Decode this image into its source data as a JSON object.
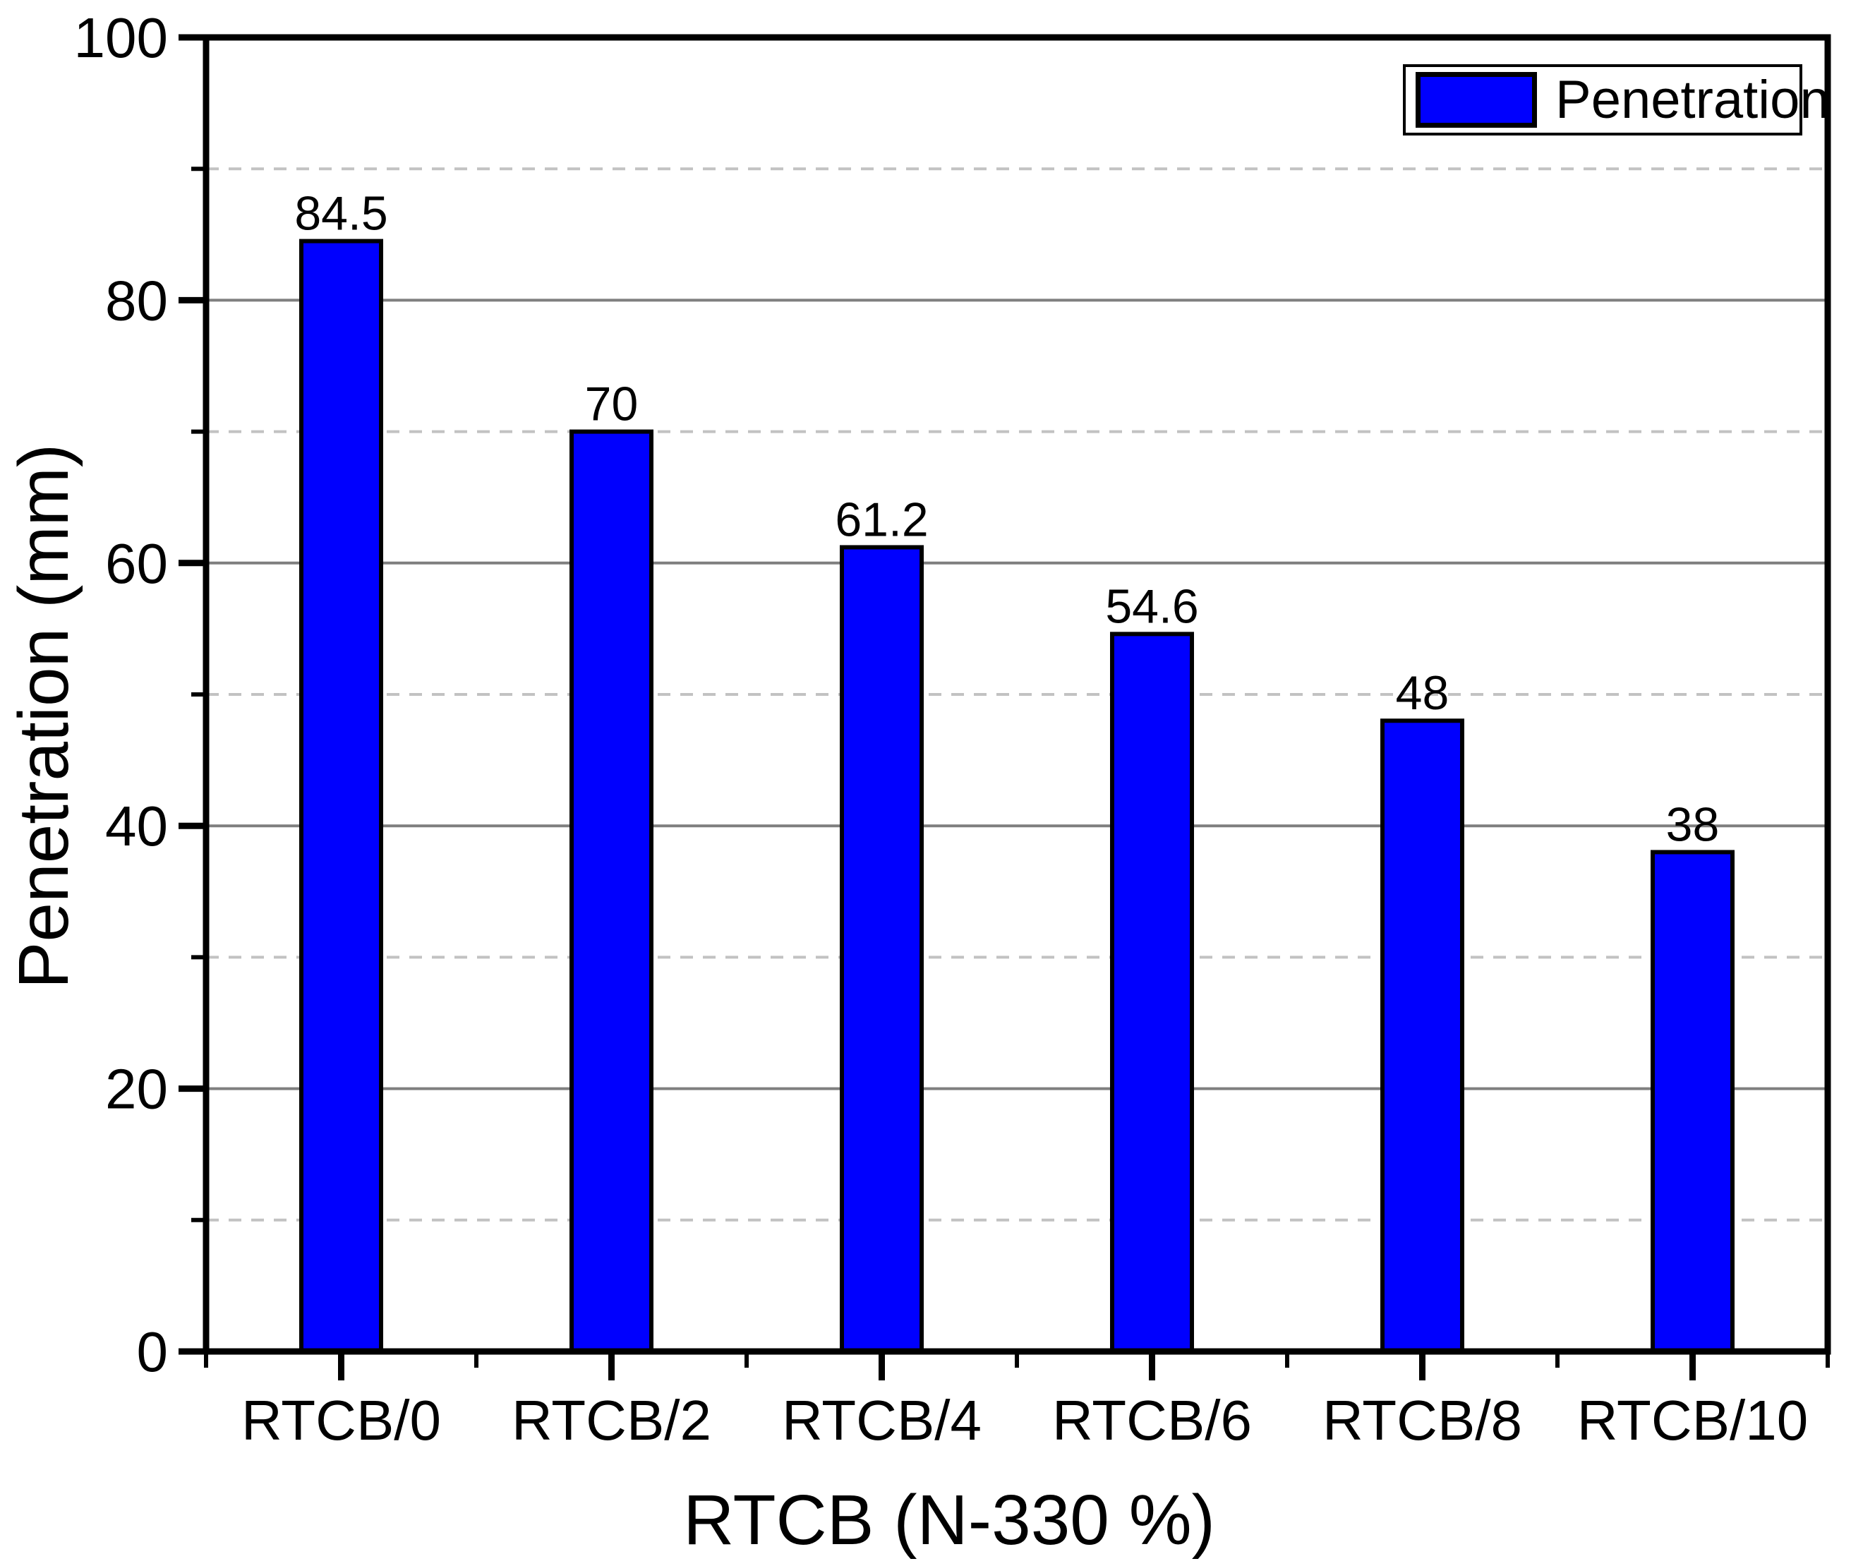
{
  "chart_data": {
    "type": "bar",
    "title": "",
    "categories": [
      "RTCB/0",
      "RTCB/2",
      "RTCB/4",
      "RTCB/6",
      "RTCB/8",
      "RTCB/10"
    ],
    "values": [
      84.5,
      70,
      61.2,
      54.6,
      48,
      38
    ],
    "value_labels": [
      "84.5",
      "70",
      "61.2",
      "54.6",
      "48",
      "38"
    ],
    "series_name": "Penetration",
    "xlabel": "RTCB (N-330 %)",
    "ylabel": "Penetration (mm)",
    "ylim": [
      0,
      100
    ],
    "y_major_ticks": [
      0,
      20,
      40,
      60,
      80,
      100
    ],
    "y_major_tick_labels": [
      "0",
      "20",
      "40",
      "60",
      "80",
      "100"
    ],
    "y_minor_ticks": [
      10,
      30,
      50,
      70,
      90
    ],
    "grid": {
      "major": "solid",
      "minor": "dashed",
      "major_color": "#7f7f7f",
      "minor_color": "#c2c2c2"
    },
    "legend": {
      "position": "top-right",
      "entries": [
        {
          "label": "Penetration",
          "color": "#0000fe"
        }
      ]
    },
    "bar_color": "#0000fe",
    "bar_edge_color": "#000000",
    "axis_color": "#000000",
    "text_color": "#000000"
  }
}
